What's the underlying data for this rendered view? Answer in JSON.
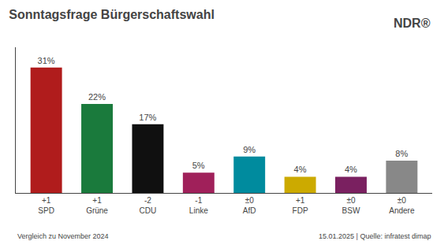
{
  "chart_data": {
    "type": "bar",
    "title": "Sonntagsfrage Bürgerschaftswahl",
    "categories": [
      "+1\nSPD",
      "+1\nGrüne",
      "-2\nCDU",
      "-1\nLinke",
      "±0\nAfD",
      "+1\nFDP",
      "±0\nBSW",
      "±0\nAndere"
    ],
    "values": [
      31,
      22,
      17,
      5,
      9,
      4,
      4,
      8
    ],
    "value_labels": [
      "31%",
      "22%",
      "17%",
      "5%",
      "9%",
      "4%",
      "4%",
      "8%"
    ],
    "colors": [
      "#b01c1c",
      "#1a7a3c",
      "#101010",
      "#a0205a",
      "#008b9e",
      "#ccaa00",
      "#7a2060",
      "#888888"
    ],
    "ylim": [
      0,
      36
    ],
    "data_labels": true,
    "tick_labels": "x",
    "grid": false,
    "annotations": [
      "Vergleich zu November 2024",
      "15.01.2025 | Quelle: infratest dimap",
      "NDR®"
    ]
  }
}
